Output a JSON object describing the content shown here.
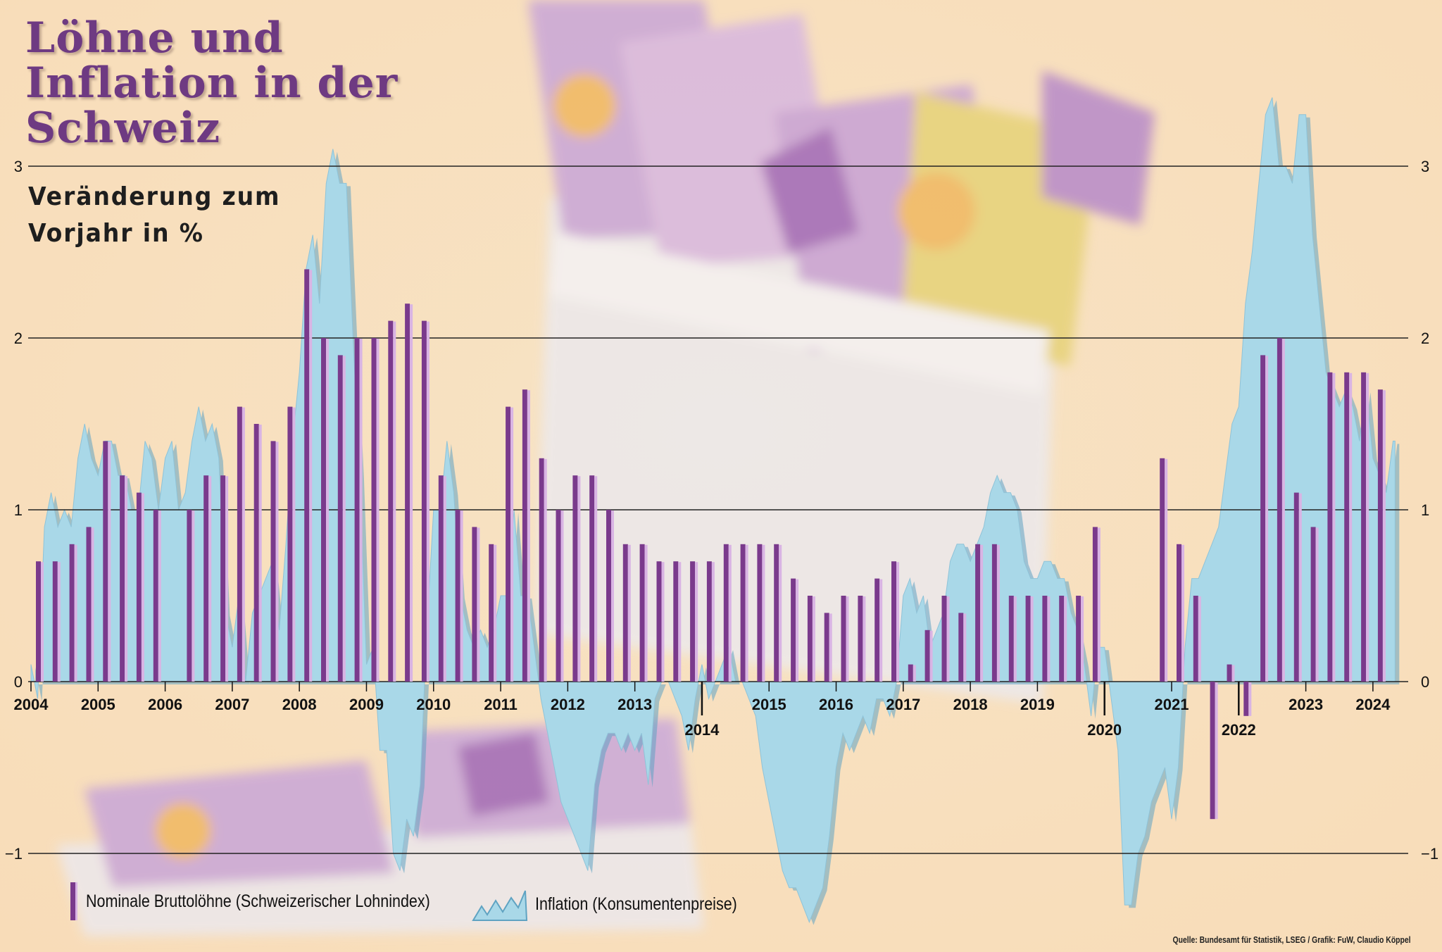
{
  "title": "Löhne und Inflation in der Schweiz",
  "subtitle": "Veränderung zum Vorjahr in %",
  "source": "Quelle: Bundesamt für Statistik, LSEG / Grafik: FuW, Claudio Köppel",
  "colors": {
    "wage": "#7a3a8c",
    "wage_highlight": "#d9b4e4",
    "inflation": "#a9d8e8",
    "inflation_edge": "#5fa3c2",
    "title": "#6e3a82",
    "grid": "#222222"
  },
  "legend": {
    "wage": "Nominale Bruttolöhne (Schweizerischer Lohnindex)",
    "inflation": "Inflation (Konsumentenpreise)"
  },
  "chart_data": {
    "type": "bar+area",
    "title": "Löhne und Inflation in der Schweiz",
    "ylabel": "Veränderung zum Vorjahr in %",
    "ylim": [
      -1.5,
      3.3
    ],
    "yticks_left": [
      "3",
      "2",
      "1",
      "0",
      "−1"
    ],
    "yticks_right": [
      "3",
      "2",
      "1",
      "0",
      "−1"
    ],
    "ytick_values": [
      3,
      2,
      1,
      0,
      -1
    ],
    "x_range": [
      2004.0,
      2024.4
    ],
    "year_labels": [
      "2004",
      "2005",
      "2006",
      "2007",
      "2008",
      "2009",
      "2010",
      "2011",
      "2012",
      "2013",
      "2014",
      "2015",
      "2016",
      "2017",
      "2018",
      "2019",
      "2020",
      "2021",
      "2022",
      "2023",
      "2024"
    ],
    "year_label_low": [
      "2014",
      "2020",
      "2022"
    ],
    "series": [
      {
        "name": "Nominale Bruttolöhne (Schweizerischer Lohnindex)",
        "type": "bar",
        "frequency": "quarterly",
        "x": [
          2004.0,
          2004.25,
          2004.5,
          2004.75,
          2005.0,
          2005.25,
          2005.5,
          2005.75,
          2006.25,
          2006.5,
          2006.75,
          2007.0,
          2007.25,
          2007.5,
          2007.75,
          2008.0,
          2008.25,
          2008.5,
          2008.75,
          2009.0,
          2009.25,
          2009.5,
          2009.75,
          2010.0,
          2010.25,
          2010.5,
          2010.75,
          2011.0,
          2011.25,
          2011.5,
          2011.75,
          2012.0,
          2012.25,
          2012.5,
          2012.75,
          2013.0,
          2013.25,
          2013.5,
          2013.75,
          2014.0,
          2014.25,
          2014.5,
          2014.75,
          2015.0,
          2015.25,
          2015.5,
          2015.75,
          2016.0,
          2016.25,
          2016.5,
          2016.75,
          2017.0,
          2017.25,
          2017.5,
          2017.75,
          2018.0,
          2018.25,
          2018.5,
          2018.75,
          2019.0,
          2019.25,
          2019.5,
          2019.75,
          2020.75,
          2021.0,
          2021.25,
          2021.5,
          2021.75,
          2022.0,
          2022.25,
          2022.5,
          2022.75,
          2023.0,
          2023.25,
          2023.5,
          2023.75,
          2024.0
        ],
        "values": [
          0.7,
          0.7,
          0.8,
          0.9,
          1.4,
          1.2,
          1.1,
          1.0,
          1.0,
          1.2,
          1.2,
          1.6,
          1.5,
          1.4,
          1.6,
          2.4,
          2.0,
          1.9,
          2.0,
          2.0,
          2.1,
          2.2,
          2.1,
          1.2,
          1.0,
          0.9,
          0.8,
          1.6,
          1.7,
          1.3,
          1.0,
          1.2,
          1.2,
          1.0,
          0.8,
          0.8,
          0.7,
          0.7,
          0.7,
          0.7,
          0.8,
          0.8,
          0.8,
          0.8,
          0.6,
          0.5,
          0.4,
          0.5,
          0.5,
          0.6,
          0.7,
          0.1,
          0.3,
          0.5,
          0.4,
          0.8,
          0.8,
          0.5,
          0.5,
          0.5,
          0.5,
          0.5,
          0.9,
          1.3,
          0.8,
          0.5,
          -0.8,
          0.1,
          -0.2,
          1.9,
          2.0,
          1.1,
          0.9,
          1.8,
          1.8,
          1.8,
          1.7
        ]
      },
      {
        "name": "Inflation (Konsumentenpreise)",
        "type": "area",
        "frequency": "monthly (approx.)",
        "points": [
          [
            2004.0,
            0.1
          ],
          [
            2004.1,
            -0.1
          ],
          [
            2004.2,
            0.9
          ],
          [
            2004.3,
            1.1
          ],
          [
            2004.4,
            0.9
          ],
          [
            2004.5,
            1.0
          ],
          [
            2004.6,
            0.9
          ],
          [
            2004.7,
            1.3
          ],
          [
            2004.8,
            1.5
          ],
          [
            2004.9,
            1.3
          ],
          [
            2005.0,
            1.2
          ],
          [
            2005.1,
            1.4
          ],
          [
            2005.2,
            1.4
          ],
          [
            2005.3,
            1.2
          ],
          [
            2005.4,
            1.2
          ],
          [
            2005.5,
            1.0
          ],
          [
            2005.6,
            1.0
          ],
          [
            2005.7,
            1.4
          ],
          [
            2005.8,
            1.3
          ],
          [
            2005.9,
            1.0
          ],
          [
            2006.0,
            1.3
          ],
          [
            2006.1,
            1.4
          ],
          [
            2006.2,
            1.0
          ],
          [
            2006.3,
            1.1
          ],
          [
            2006.4,
            1.4
          ],
          [
            2006.5,
            1.6
          ],
          [
            2006.6,
            1.4
          ],
          [
            2006.7,
            1.5
          ],
          [
            2006.8,
            1.3
          ],
          [
            2006.9,
            0.4
          ],
          [
            2007.0,
            0.2
          ],
          [
            2007.1,
            0.5
          ],
          [
            2007.2,
            0.0
          ],
          [
            2007.3,
            0.4
          ],
          [
            2007.4,
            0.5
          ],
          [
            2007.5,
            0.6
          ],
          [
            2007.6,
            0.7
          ],
          [
            2007.7,
            0.3
          ],
          [
            2007.8,
            0.8
          ],
          [
            2007.9,
            1.4
          ],
          [
            2008.0,
            1.8
          ],
          [
            2008.1,
            2.4
          ],
          [
            2008.2,
            2.6
          ],
          [
            2008.3,
            2.2
          ],
          [
            2008.4,
            2.9
          ],
          [
            2008.5,
            3.1
          ],
          [
            2008.6,
            2.9
          ],
          [
            2008.7,
            2.9
          ],
          [
            2008.8,
            2.0
          ],
          [
            2008.9,
            1.2
          ],
          [
            2009.0,
            0.1
          ],
          [
            2009.1,
            0.2
          ],
          [
            2009.2,
            -0.4
          ],
          [
            2009.3,
            -0.4
          ],
          [
            2009.4,
            -1.0
          ],
          [
            2009.5,
            -1.1
          ],
          [
            2009.6,
            -0.8
          ],
          [
            2009.7,
            -0.9
          ],
          [
            2009.8,
            -0.6
          ],
          [
            2009.9,
            0.3
          ],
          [
            2010.0,
            1.0
          ],
          [
            2010.1,
            1.0
          ],
          [
            2010.2,
            1.4
          ],
          [
            2010.3,
            1.1
          ],
          [
            2010.4,
            0.5
          ],
          [
            2010.5,
            0.3
          ],
          [
            2010.6,
            0.2
          ],
          [
            2010.7,
            0.3
          ],
          [
            2010.8,
            0.2
          ],
          [
            2010.9,
            0.3
          ],
          [
            2011.0,
            0.5
          ],
          [
            2011.1,
            0.5
          ],
          [
            2011.2,
            1.0
          ],
          [
            2011.3,
            0.5
          ],
          [
            2011.4,
            0.5
          ],
          [
            2011.5,
            0.2
          ],
          [
            2011.6,
            -0.1
          ],
          [
            2011.7,
            -0.3
          ],
          [
            2011.8,
            -0.5
          ],
          [
            2011.9,
            -0.7
          ],
          [
            2012.0,
            -0.8
          ],
          [
            2012.1,
            -0.9
          ],
          [
            2012.2,
            -1.0
          ],
          [
            2012.3,
            -1.1
          ],
          [
            2012.4,
            -0.6
          ],
          [
            2012.5,
            -0.4
          ],
          [
            2012.6,
            -0.3
          ],
          [
            2012.7,
            -0.3
          ],
          [
            2012.8,
            -0.4
          ],
          [
            2012.9,
            -0.3
          ],
          [
            2013.0,
            -0.4
          ],
          [
            2013.1,
            -0.3
          ],
          [
            2013.2,
            -0.6
          ],
          [
            2013.3,
            -0.1
          ],
          [
            2013.4,
            0.0
          ],
          [
            2013.5,
            0.0
          ],
          [
            2013.6,
            -0.1
          ],
          [
            2013.7,
            -0.2
          ],
          [
            2013.8,
            -0.4
          ],
          [
            2013.9,
            -0.1
          ],
          [
            2014.0,
            0.1
          ],
          [
            2014.1,
            -0.1
          ],
          [
            2014.2,
            0.0
          ],
          [
            2014.3,
            0.1
          ],
          [
            2014.4,
            0.2
          ],
          [
            2014.5,
            0.0
          ],
          [
            2014.6,
            0.0
          ],
          [
            2014.7,
            -0.1
          ],
          [
            2014.8,
            -0.2
          ],
          [
            2014.9,
            -0.5
          ],
          [
            2015.0,
            -0.7
          ],
          [
            2015.1,
            -0.9
          ],
          [
            2015.2,
            -1.1
          ],
          [
            2015.3,
            -1.2
          ],
          [
            2015.4,
            -1.2
          ],
          [
            2015.5,
            -1.3
          ],
          [
            2015.6,
            -1.4
          ],
          [
            2015.7,
            -1.3
          ],
          [
            2015.8,
            -1.2
          ],
          [
            2015.9,
            -0.9
          ],
          [
            2016.0,
            -0.5
          ],
          [
            2016.1,
            -0.3
          ],
          [
            2016.2,
            -0.4
          ],
          [
            2016.3,
            -0.3
          ],
          [
            2016.4,
            -0.2
          ],
          [
            2016.5,
            -0.3
          ],
          [
            2016.6,
            -0.1
          ],
          [
            2016.7,
            -0.1
          ],
          [
            2016.8,
            -0.2
          ],
          [
            2016.9,
            0.0
          ],
          [
            2017.0,
            0.5
          ],
          [
            2017.1,
            0.6
          ],
          [
            2017.2,
            0.4
          ],
          [
            2017.3,
            0.5
          ],
          [
            2017.4,
            0.2
          ],
          [
            2017.5,
            0.3
          ],
          [
            2017.6,
            0.4
          ],
          [
            2017.7,
            0.7
          ],
          [
            2017.8,
            0.8
          ],
          [
            2017.9,
            0.8
          ],
          [
            2018.0,
            0.7
          ],
          [
            2018.1,
            0.8
          ],
          [
            2018.2,
            0.9
          ],
          [
            2018.3,
            1.1
          ],
          [
            2018.4,
            1.2
          ],
          [
            2018.5,
            1.1
          ],
          [
            2018.6,
            1.1
          ],
          [
            2018.7,
            1.0
          ],
          [
            2018.8,
            0.7
          ],
          [
            2018.9,
            0.6
          ],
          [
            2019.0,
            0.6
          ],
          [
            2019.1,
            0.7
          ],
          [
            2019.2,
            0.7
          ],
          [
            2019.3,
            0.6
          ],
          [
            2019.4,
            0.6
          ],
          [
            2019.5,
            0.4
          ],
          [
            2019.6,
            0.3
          ],
          [
            2019.7,
            0.1
          ],
          [
            2019.8,
            -0.2
          ],
          [
            2019.9,
            0.2
          ],
          [
            2020.0,
            0.2
          ],
          [
            2020.1,
            -0.1
          ],
          [
            2020.2,
            -0.4
          ],
          [
            2020.3,
            -1.3
          ],
          [
            2020.4,
            -1.3
          ],
          [
            2020.5,
            -1.0
          ],
          [
            2020.6,
            -0.9
          ],
          [
            2020.7,
            -0.7
          ],
          [
            2020.8,
            -0.6
          ],
          [
            2020.9,
            -0.5
          ],
          [
            2021.0,
            -0.8
          ],
          [
            2021.1,
            -0.5
          ],
          [
            2021.2,
            0.2
          ],
          [
            2021.3,
            0.6
          ],
          [
            2021.4,
            0.6
          ],
          [
            2021.5,
            0.7
          ],
          [
            2021.6,
            0.8
          ],
          [
            2021.7,
            0.9
          ],
          [
            2021.8,
            1.2
          ],
          [
            2021.9,
            1.5
          ],
          [
            2022.0,
            1.6
          ],
          [
            2022.1,
            2.2
          ],
          [
            2022.2,
            2.5
          ],
          [
            2022.3,
            2.9
          ],
          [
            2022.4,
            3.3
          ],
          [
            2022.5,
            3.4
          ],
          [
            2022.6,
            3.0
          ],
          [
            2022.7,
            3.0
          ],
          [
            2022.8,
            2.9
          ],
          [
            2022.9,
            3.3
          ],
          [
            2023.0,
            3.3
          ],
          [
            2023.1,
            2.6
          ],
          [
            2023.2,
            2.2
          ],
          [
            2023.3,
            1.8
          ],
          [
            2023.4,
            1.7
          ],
          [
            2023.5,
            1.6
          ],
          [
            2023.6,
            1.7
          ],
          [
            2023.7,
            1.6
          ],
          [
            2023.8,
            1.4
          ],
          [
            2023.9,
            1.7
          ],
          [
            2024.0,
            1.3
          ],
          [
            2024.1,
            1.2
          ],
          [
            2024.2,
            1.1
          ],
          [
            2024.3,
            1.4
          ],
          [
            2024.33,
            1.4
          ]
        ]
      }
    ]
  }
}
